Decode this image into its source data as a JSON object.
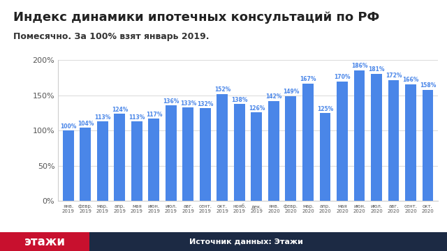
{
  "chart_data": {
    "type": "bar",
    "title": "Индекс динамики ипотечных консультаций по РФ",
    "subtitle": "Помесячно. За 100% взят январь 2019.",
    "categories": [
      "янв.\n2019",
      "февр.\n2019",
      "мар.\n2019",
      "апр.\n2019",
      "мая\n2019",
      "июн.\n2019",
      "июл.\n2019",
      "авг.\n2019",
      "сент.\n2019",
      "окт.\n2019",
      "нояб.\n2019",
      "дек.\n2019",
      "янв.\n2020",
      "февр.\n2020",
      "мар.\n2020",
      "апр.\n2020",
      "мая\n2020",
      "июн.\n2020",
      "июл.\n2020",
      "авг.\n2020",
      "сент.\n2020",
      "окт.\n2020"
    ],
    "values": [
      100,
      104,
      113,
      124,
      113,
      117,
      136,
      133,
      132,
      152,
      138,
      126,
      142,
      149,
      167,
      125,
      170,
      186,
      181,
      172,
      166,
      158
    ],
    "value_labels": [
      "100%",
      "104%",
      "113%",
      "124%",
      "113%",
      "117%",
      "136%",
      "133%",
      "132%",
      "152%",
      "138%",
      "126%",
      "142%",
      "149%",
      "167%",
      "125%",
      "170%",
      "186%",
      "181%",
      "172%",
      "166%",
      "158%"
    ],
    "color": "#4a86e8",
    "ylim": [
      0,
      200
    ],
    "yticks": [
      {
        "value": 0,
        "label": "0%"
      },
      {
        "value": 50,
        "label": "50%"
      },
      {
        "value": 100,
        "label": "100%"
      },
      {
        "value": 150,
        "label": "150%"
      },
      {
        "value": 200,
        "label": "200%"
      }
    ],
    "grid": true,
    "data_labels": true
  },
  "footer": {
    "logo": "этажи",
    "source": "Источник данных: Этажи"
  }
}
